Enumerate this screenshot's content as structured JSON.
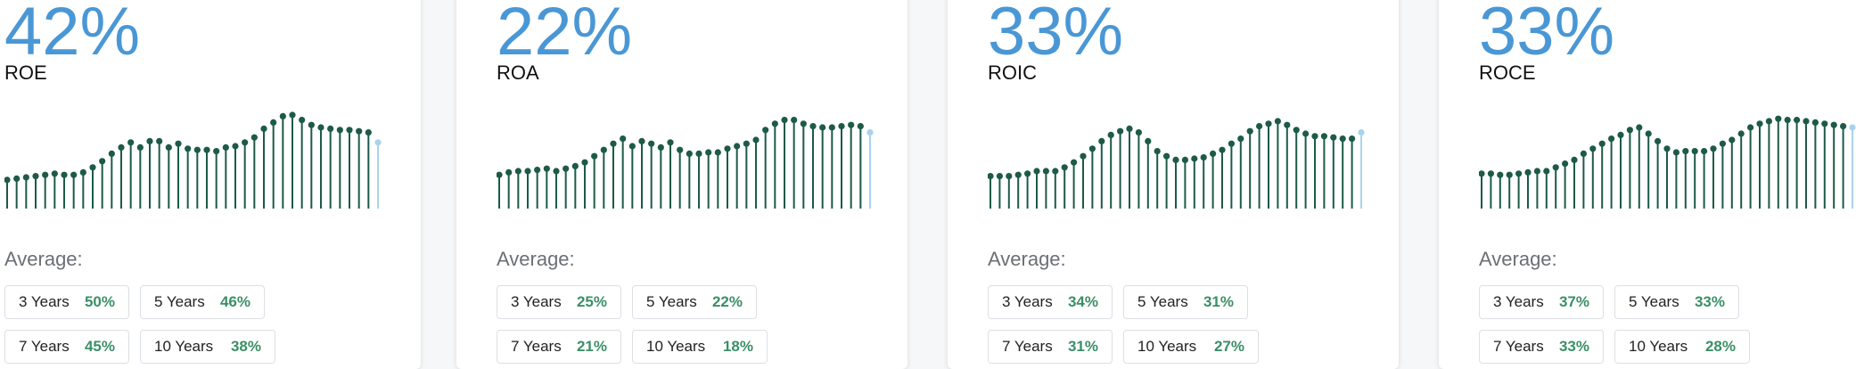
{
  "average_label": "Average:",
  "cards": [
    {
      "id": "roe",
      "value": "42%",
      "name": "ROE",
      "averages": [
        {
          "label": "3 Years",
          "value": "50%"
        },
        {
          "label": "5 Years",
          "value": "46%"
        },
        {
          "label": "7 Years",
          "value": "45%"
        },
        {
          "label": "10 Years",
          "value": "38%"
        }
      ]
    },
    {
      "id": "roa",
      "value": "22%",
      "name": "ROA",
      "averages": [
        {
          "label": "3 Years",
          "value": "25%"
        },
        {
          "label": "5 Years",
          "value": "22%"
        },
        {
          "label": "7 Years",
          "value": "21%"
        },
        {
          "label": "10 Years",
          "value": "18%"
        }
      ]
    },
    {
      "id": "roic",
      "value": "33%",
      "name": "ROIC",
      "averages": [
        {
          "label": "3 Years",
          "value": "34%"
        },
        {
          "label": "5 Years",
          "value": "31%"
        },
        {
          "label": "7 Years",
          "value": "31%"
        },
        {
          "label": "10 Years",
          "value": "27%"
        }
      ]
    },
    {
      "id": "roce",
      "value": "33%",
      "name": "ROCE",
      "averages": [
        {
          "label": "3 Years",
          "value": "37%"
        },
        {
          "label": "5 Years",
          "value": "33%"
        },
        {
          "label": "7 Years",
          "value": "33%"
        },
        {
          "label": "10 Years",
          "value": "28%"
        }
      ]
    }
  ],
  "colors": {
    "big_value": "#4a97d5",
    "stem": "#1d5a48",
    "latest_stem": "#a9d3ec",
    "average_value": "#3b8f67"
  },
  "chart_data": [
    {
      "type": "lollipop",
      "metric": "ROE",
      "values": [
        23,
        24,
        25,
        26,
        27,
        28,
        27,
        27,
        29,
        33,
        38,
        44,
        49,
        53,
        49,
        54,
        54,
        49,
        52,
        48,
        47,
        47,
        46,
        49,
        50,
        53,
        57,
        64,
        69,
        74,
        75,
        71,
        67,
        65,
        64,
        63,
        63,
        62,
        61,
        53
      ]
    },
    {
      "type": "lollipop",
      "metric": "ROA",
      "values": [
        27,
        29,
        30,
        30,
        31,
        32,
        30,
        32,
        34,
        37,
        42,
        47,
        52,
        56,
        50,
        54,
        52,
        49,
        53,
        47,
        44,
        44,
        45,
        45,
        48,
        50,
        52,
        55,
        63,
        68,
        71,
        71,
        68,
        66,
        65,
        65,
        66,
        67,
        66,
        61
      ]
    },
    {
      "type": "lollipop",
      "metric": "ROIC",
      "values": [
        26,
        26,
        26,
        27,
        28,
        30,
        30,
        30,
        33,
        37,
        42,
        48,
        54,
        59,
        62,
        64,
        61,
        54,
        46,
        42,
        39,
        39,
        40,
        41,
        44,
        47,
        52,
        56,
        62,
        66,
        68,
        70,
        67,
        63,
        60,
        58,
        58,
        57,
        56,
        56,
        61
      ]
    },
    {
      "type": "lollipop",
      "metric": "ROCE",
      "values": [
        28,
        28,
        27,
        27,
        28,
        29,
        30,
        30,
        33,
        36,
        39,
        44,
        48,
        52,
        56,
        59,
        63,
        65,
        60,
        54,
        48,
        45,
        46,
        46,
        46,
        48,
        52,
        55,
        60,
        65,
        68,
        70,
        72,
        71,
        71,
        70,
        69,
        68,
        67,
        66,
        65
      ]
    }
  ]
}
